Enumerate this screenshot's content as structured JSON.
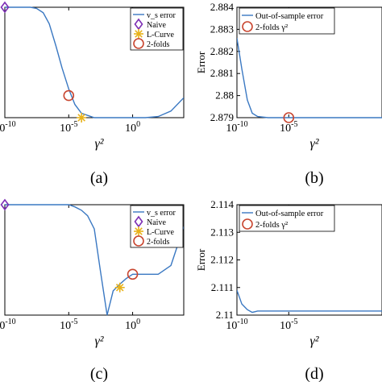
{
  "colors": {
    "line": "#3a78c2",
    "naive": "#7d2fb5",
    "lcurve": "#e8b21a",
    "folds": "#c8452f",
    "axis": "#000000"
  },
  "icons": {
    "naive": "diamond-marker-icon",
    "lcurve": "asterisk-marker-icon",
    "folds": "circle-marker-icon"
  },
  "chart_data": [
    {
      "id": "a",
      "panel_label": "(a)",
      "type": "line",
      "xscale": "log",
      "xlim": [
        1e-10,
        10000.0
      ],
      "xticks": [
        {
          "v": 1e-10,
          "label": "-10"
        },
        {
          "v": 1e-05,
          "label": "-5"
        },
        {
          "v": 1,
          "label": "0"
        }
      ],
      "xlabel": "γ²",
      "ylim": [
        0,
        1
      ],
      "yticks": [],
      "ylabel": "",
      "legend_position": "top-right",
      "legend": [
        "v_s error",
        "Naive",
        "L-Curve",
        "2-folds"
      ],
      "series": [
        {
          "name": "v_s error",
          "x": [
            1e-10,
            1e-09,
            1e-08,
            3e-08,
            1e-07,
            3e-07,
            1e-06,
            3e-06,
            1e-05,
            3e-05,
            0.0001,
            0.001,
            0.01,
            0.1,
            1,
            10,
            100,
            1000,
            10000.0
          ],
          "y": [
            1.0,
            1.0,
            1.0,
            0.99,
            0.95,
            0.85,
            0.65,
            0.45,
            0.26,
            0.12,
            0.04,
            0.0,
            0.0,
            0.0,
            0.0,
            0.0,
            0.01,
            0.06,
            0.18
          ]
        }
      ],
      "markers": [
        {
          "kind": "naive",
          "x": 1e-10,
          "y": 1.0
        },
        {
          "kind": "lcurve",
          "x": 0.0001,
          "y": 0.0
        },
        {
          "kind": "folds",
          "x": 1e-05,
          "y": 0.2
        }
      ]
    },
    {
      "id": "b",
      "panel_label": "(b)",
      "type": "line",
      "xscale": "log",
      "xlim": [
        1e-10,
        10000.0
      ],
      "xticks": [
        {
          "v": 1e-10,
          "label": "-10"
        },
        {
          "v": 1e-05,
          "label": "-5"
        }
      ],
      "xlabel": "γ²",
      "ylim": [
        2.879,
        2.884
      ],
      "yticks": [
        "2.879",
        "2.88",
        "2.881",
        "2.882",
        "2.883",
        "2.884"
      ],
      "ylabel": "Error",
      "legend_position": "top-left",
      "legend": [
        "Out-of-sample error",
        "2-folds γ²"
      ],
      "series": [
        {
          "name": "Out-of-sample error",
          "x": [
            1e-10,
            3e-10,
            1e-09,
            3e-09,
            1e-08,
            1e-07,
            1e-06,
            1e-05,
            0.0001,
            0.001,
            0.01,
            0.1,
            1,
            100,
            10000.0
          ],
          "y": [
            2.8826,
            2.8812,
            2.8798,
            2.8792,
            2.87905,
            2.879,
            2.879,
            2.879,
            2.879,
            2.879,
            2.879,
            2.879,
            2.879,
            2.879,
            2.879
          ]
        }
      ],
      "markers": [
        {
          "kind": "folds",
          "x": 1e-05,
          "y": 2.879
        }
      ]
    },
    {
      "id": "c",
      "panel_label": "(c)",
      "type": "line",
      "xscale": "log",
      "xlim": [
        1e-10,
        10000.0
      ],
      "xticks": [
        {
          "v": 1e-10,
          "label": "-10"
        },
        {
          "v": 1e-05,
          "label": "-5"
        },
        {
          "v": 1,
          "label": "0"
        }
      ],
      "xlabel": "γ²",
      "ylim": [
        0,
        1
      ],
      "yticks": [],
      "ylabel": "",
      "legend_position": "top-right",
      "legend": [
        "v_s error",
        "Naive",
        "L-Curve",
        "2-folds"
      ],
      "series": [
        {
          "name": "v_s error",
          "x": [
            1e-10,
            1e-08,
            1e-07,
            1e-06,
            1e-05,
            3e-05,
            0.0001,
            0.0003,
            0.001,
            0.003,
            0.01,
            0.03,
            0.1,
            0.3,
            1,
            10,
            100,
            1000,
            10000.0
          ],
          "y": [
            1.0,
            1.0,
            1.0,
            1.0,
            1.0,
            0.98,
            0.95,
            0.9,
            0.78,
            0.4,
            0.0,
            0.22,
            0.28,
            0.33,
            0.37,
            0.37,
            0.37,
            0.45,
            0.8
          ]
        }
      ],
      "markers": [
        {
          "kind": "naive",
          "x": 1e-10,
          "y": 1.0
        },
        {
          "kind": "lcurve",
          "x": 0.1,
          "y": 0.25
        },
        {
          "kind": "folds",
          "x": 1,
          "y": 0.37
        }
      ]
    },
    {
      "id": "d",
      "panel_label": "(d)",
      "type": "line",
      "xscale": "log",
      "xlim": [
        1e-10,
        10000.0
      ],
      "xticks": [
        {
          "v": 1e-10,
          "label": "-10"
        },
        {
          "v": 1e-05,
          "label": "-5"
        }
      ],
      "xlabel": "γ²",
      "ylim": [
        2.11,
        2.114
      ],
      "yticks": [
        "2.11",
        "2.111",
        "2.112",
        "2.113",
        "2.114"
      ],
      "ylabel": "Error",
      "legend_position": "top-left",
      "legend": [
        "Out-of-sample error",
        "2-folds γ²"
      ],
      "series": [
        {
          "name": "Out-of-sample error",
          "x": [
            1e-10,
            3e-10,
            1e-09,
            3e-09,
            1e-08,
            1e-07,
            1e-06,
            1e-05,
            0.0001,
            0.001,
            0.01,
            0.1,
            1,
            100,
            10000.0
          ],
          "y": [
            2.1109,
            2.1104,
            2.1102,
            2.1101,
            2.11015,
            2.11015,
            2.11015,
            2.11015,
            2.11015,
            2.11015,
            2.11015,
            2.11015,
            2.11015,
            2.11015,
            2.11015
          ]
        }
      ],
      "markers": []
    }
  ]
}
